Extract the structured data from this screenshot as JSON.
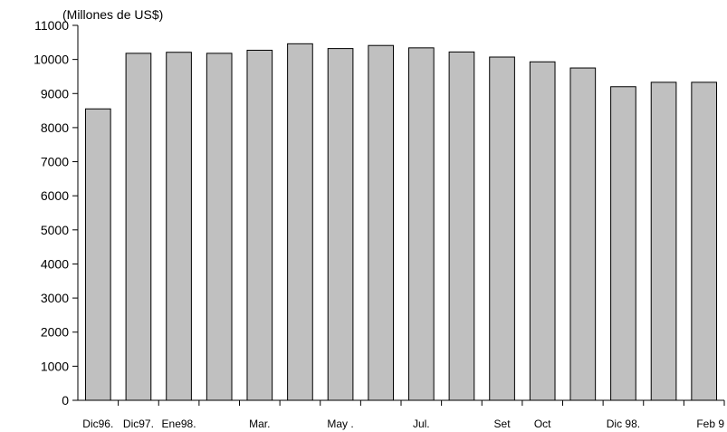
{
  "chart_data": {
    "type": "bar",
    "unit_label": "(Millones de US$)",
    "categories": [
      "Dic96.",
      "Dic97.",
      "Ene98.",
      "",
      "Mar.",
      "",
      "May .",
      "",
      "Jul.",
      "",
      "Set",
      "Oct",
      "",
      "Dic 98.",
      "",
      "Feb 9"
    ],
    "values": [
      8550,
      10180,
      10210,
      10180,
      10270,
      10460,
      10320,
      10410,
      10340,
      10220,
      10070,
      9930,
      9750,
      9200,
      9330,
      9330
    ],
    "ylim": [
      0,
      11000
    ],
    "yticks": [
      0,
      1000,
      2000,
      3000,
      4000,
      5000,
      6000,
      7000,
      8000,
      9000,
      10000,
      11000
    ],
    "grid": false,
    "colors": {
      "bar_fill": "#c0c0c0",
      "bar_stroke": "#000000",
      "axis": "#000000"
    }
  }
}
